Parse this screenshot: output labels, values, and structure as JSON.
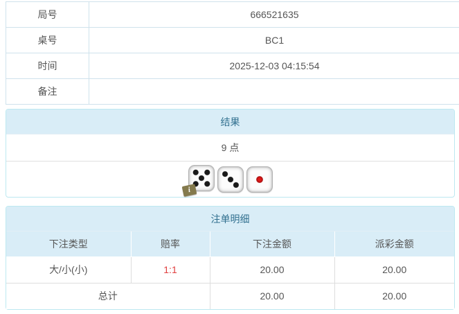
{
  "info_table": {
    "rows": [
      {
        "label": "局号",
        "value": "666521635"
      },
      {
        "label": "桌号",
        "value": "BC1"
      },
      {
        "label": "时间",
        "value": "2025-12-03 04:15:54"
      },
      {
        "label": "备注",
        "value": ""
      }
    ]
  },
  "result_panel": {
    "title": "结果",
    "points": "9 点",
    "dice": [
      5,
      3,
      1
    ],
    "info_badge_label": "i"
  },
  "bets_panel": {
    "title": "注单明细",
    "columns": [
      "下注类型",
      "赔率",
      "下注金额",
      "派彩金额"
    ],
    "rows": [
      {
        "bet_type": "大/小(小)",
        "odds": "1:1",
        "bet_amount": "20.00",
        "payout": "20.00"
      }
    ],
    "total": {
      "label": "总计",
      "bet_amount": "20.00",
      "payout": "20.00"
    }
  },
  "colors": {
    "accent_text": "#31708f",
    "heading_bg": "#d9edf7",
    "panel_border": "#bce8f1",
    "odds_red": "#e03e3e",
    "badge_olive": "#847a4d",
    "pip_black": "#1a1a1a",
    "pip_red": "#c01414"
  }
}
